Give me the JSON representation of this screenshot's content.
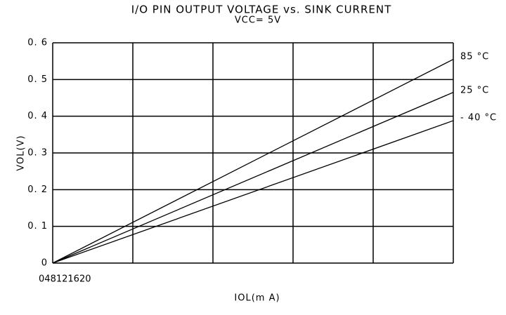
{
  "chart_data": {
    "type": "line",
    "title": "I/O PIN OUTPUT VOLTAGE vs. SINK CURRENT",
    "subtitle": "VCC= 5V",
    "x_label": "IOL(m A)",
    "y_label": "VOL(V)",
    "x": [
      0,
      20
    ],
    "series": [
      {
        "name": "85 °C",
        "color": "#000000",
        "values": [
          0,
          0.555
        ]
      },
      {
        "name": "25 °C",
        "color": "#000000",
        "values": [
          0,
          0.465
        ]
      },
      {
        "name": "- 40 °C",
        "color": "#000000",
        "values": [
          0,
          0.388
        ]
      }
    ],
    "xlim": [
      0,
      20
    ],
    "xticks": [
      0,
      4,
      8,
      12,
      16,
      20
    ],
    "ylim": [
      0,
      0.6
    ],
    "yticks": [
      0,
      {
        "value": 0.1,
        "label": "0. 1"
      },
      {
        "value": 0.2,
        "label": "0. 2"
      },
      {
        "value": 0.3,
        "label": "0. 3"
      },
      {
        "value": 0.4,
        "label": "0. 4"
      },
      {
        "value": 0.5,
        "label": "0. 5"
      },
      {
        "value": 0.6,
        "label": "0. 6"
      }
    ],
    "grid": true
  }
}
